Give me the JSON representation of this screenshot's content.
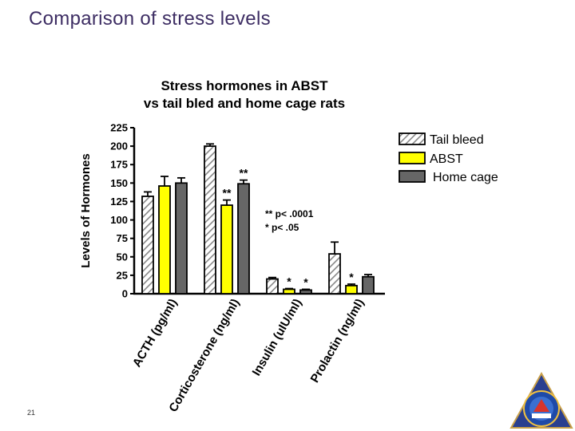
{
  "slide": {
    "title": "Comparison of stress levels",
    "page_number": "21"
  },
  "colors": {
    "title": "#3d2d63",
    "abst": "#ffff00",
    "home_cage": "#666666",
    "tail_bleed_hatch": "#888888"
  },
  "chart_data": {
    "type": "bar",
    "title_lines": [
      "Stress hormones in ABST",
      "vs tail bled and home cage rats"
    ],
    "ylabel": "Levels of Hormones",
    "xlabel": "",
    "ylim": [
      0,
      225
    ],
    "yticks": [
      0,
      25,
      50,
      75,
      100,
      125,
      150,
      175,
      200,
      225
    ],
    "categories": [
      "ACTH (pg/ml)",
      "Corticosterone (ng/ml)",
      "Insulin (uIU/ml)",
      "Prolactin (ng/ml)"
    ],
    "series": [
      {
        "name": "Tail bleed",
        "values": [
          132,
          200,
          20,
          54
        ],
        "errors": [
          6,
          3,
          2,
          16
        ],
        "fill": "hatch"
      },
      {
        "name": "ABST",
        "values": [
          146,
          120,
          6,
          11
        ],
        "errors": [
          13,
          7,
          1,
          2
        ],
        "fill": "#ffff00"
      },
      {
        "name": "Home cage",
        "values": [
          150,
          149,
          5,
          23
        ],
        "errors": [
          7,
          5,
          1,
          3
        ],
        "fill": "#666666"
      }
    ],
    "significance_marks": [
      {
        "category": 1,
        "series": 1,
        "label": "**"
      },
      {
        "category": 1,
        "series": 2,
        "label": "**"
      },
      {
        "category": 2,
        "series": 1,
        "label": "*"
      },
      {
        "category": 2,
        "series": 2,
        "label": "*"
      },
      {
        "category": 3,
        "series": 1,
        "label": "*"
      }
    ],
    "annotations": [
      "** p< .0001",
      "*  p< .05"
    ],
    "legend_position": "right",
    "grid": false
  }
}
